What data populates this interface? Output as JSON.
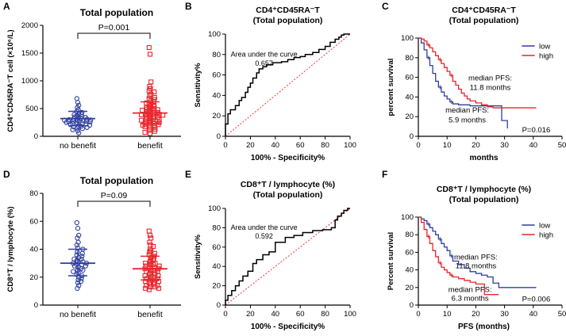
{
  "colors": {
    "blue": "#2f3f9e",
    "red": "#e8242b",
    "axis": "#000000",
    "ref": "#e8242b"
  },
  "chart_data": [
    {
      "panel": "A",
      "type": "scatter",
      "title": "Total population",
      "ylabel": "CD4⁺CD45RA⁻T cell (×10⁶/L)",
      "categories": [
        "no benefit",
        "benefit"
      ],
      "ylim": [
        0,
        2000
      ],
      "yticks": [
        0,
        500,
        1000,
        1500,
        2000
      ],
      "pvalue": "P=0.001",
      "groups": [
        {
          "name": "no benefit",
          "color_key": "blue",
          "marker": "circle",
          "mean": 320,
          "sd_low": 190,
          "sd_high": 450,
          "values": [
            680,
            610,
            560,
            520,
            480,
            450,
            430,
            410,
            400,
            390,
            370,
            360,
            350,
            340,
            330,
            320,
            315,
            310,
            300,
            295,
            290,
            285,
            280,
            275,
            270,
            265,
            260,
            250,
            240,
            235,
            230,
            220,
            210,
            200,
            190,
            180,
            170,
            160,
            150,
            140,
            120,
            100,
            60
          ]
        },
        {
          "name": "benefit",
          "color_key": "red",
          "marker": "square",
          "mean": 420,
          "sd_low": 230,
          "sd_high": 620,
          "values": [
            1600,
            1480,
            980,
            900,
            860,
            820,
            800,
            760,
            730,
            700,
            680,
            660,
            640,
            620,
            600,
            580,
            560,
            550,
            540,
            520,
            510,
            500,
            490,
            480,
            470,
            460,
            450,
            440,
            430,
            420,
            410,
            400,
            395,
            390,
            380,
            370,
            360,
            350,
            340,
            330,
            320,
            310,
            300,
            290,
            280,
            270,
            260,
            250,
            240,
            230,
            220,
            210,
            200,
            190,
            180,
            170,
            150,
            130,
            110,
            90,
            70,
            50
          ]
        }
      ]
    },
    {
      "panel": "B",
      "type": "line",
      "title": "CD4⁺CD45RA⁻T",
      "subtitle": "(Total population)",
      "xlabel": "100% - Specificity%",
      "ylabel": "Sensitivity%",
      "xlim": [
        0,
        100
      ],
      "ylim": [
        0,
        100
      ],
      "ticks": [
        0,
        20,
        40,
        60,
        80,
        100
      ],
      "annotation": "Area under the curve",
      "auc": "0.657",
      "x": [
        0,
        0,
        2,
        2,
        4,
        4,
        8,
        8,
        11,
        11,
        13,
        13,
        16,
        16,
        18,
        18,
        20,
        20,
        22,
        22,
        25,
        25,
        27,
        27,
        30,
        30,
        33,
        33,
        38,
        38,
        45,
        45,
        50,
        50,
        55,
        55,
        60,
        60,
        64,
        64,
        70,
        70,
        75,
        75,
        80,
        80,
        84,
        84,
        88,
        88,
        91,
        91,
        93,
        93,
        95,
        95,
        100
      ],
      "y": [
        0,
        12,
        12,
        22,
        22,
        26,
        26,
        30,
        30,
        35,
        35,
        38,
        38,
        43,
        43,
        48,
        48,
        52,
        52,
        57,
        57,
        62,
        62,
        66,
        66,
        68,
        68,
        70,
        70,
        72,
        72,
        73,
        73,
        75,
        75,
        77,
        77,
        78,
        78,
        80,
        80,
        82,
        82,
        85,
        85,
        88,
        88,
        92,
        92,
        95,
        95,
        97,
        97,
        99,
        99,
        100,
        100
      ]
    },
    {
      "panel": "C",
      "type": "line",
      "title": "CD4⁺CD45RA⁻T",
      "subtitle": "(Total population)",
      "xlabel": "months",
      "ylabel": "percent survival",
      "xlim": [
        0,
        50
      ],
      "ylim": [
        0,
        100
      ],
      "xticks": [
        0,
        10,
        20,
        30,
        40,
        50
      ],
      "yticks": [
        0,
        20,
        40,
        60,
        80,
        100
      ],
      "legend": [
        {
          "label": "low",
          "color_key": "blue"
        },
        {
          "label": "high",
          "color_key": "red"
        }
      ],
      "medians": [
        {
          "line1": "median PFS:",
          "line2": "11.8 months"
        },
        {
          "line1": "median PFS:",
          "line2": "5.9 months"
        }
      ],
      "pvalue": "P=0.016",
      "series": [
        {
          "name": "low",
          "color_key": "blue",
          "x": [
            0,
            1,
            2,
            3,
            4,
            5,
            6,
            7,
            8,
            9,
            10,
            11,
            12,
            14,
            16,
            18,
            20,
            22,
            24,
            26,
            28,
            29,
            30,
            31
          ],
          "y": [
            100,
            95,
            88,
            80,
            72,
            64,
            56,
            50,
            45,
            41,
            38,
            35,
            33,
            32,
            32,
            31,
            31,
            31,
            31,
            31,
            31,
            16,
            16,
            8
          ]
        },
        {
          "name": "high",
          "color_key": "red",
          "x": [
            0,
            1,
            2,
            3,
            4,
            5,
            6,
            7,
            8,
            9,
            10,
            11,
            12,
            13,
            14,
            15,
            16,
            17,
            18,
            20,
            22,
            24,
            26,
            28,
            30,
            32,
            41
          ],
          "y": [
            100,
            99,
            97,
            93,
            90,
            86,
            82,
            78,
            74,
            70,
            66,
            62,
            56,
            52,
            48,
            44,
            41,
            38,
            36,
            34,
            32,
            30,
            29,
            29,
            29,
            29,
            29
          ]
        }
      ]
    },
    {
      "panel": "D",
      "type": "scatter",
      "title": "Total population",
      "ylabel": "CD8⁺T / lymphocyte (%)",
      "categories": [
        "no benefit",
        "benefit"
      ],
      "ylim": [
        0,
        80
      ],
      "yticks": [
        0,
        20,
        40,
        60,
        80
      ],
      "pvalue": "P=0.09",
      "groups": [
        {
          "name": "no benefit",
          "color_key": "blue",
          "marker": "circle",
          "mean": 30,
          "sd_low": 21,
          "sd_high": 40,
          "values": [
            59,
            55,
            50,
            48,
            45,
            43,
            41,
            40,
            38,
            37,
            36,
            35,
            34,
            33,
            33,
            32,
            31,
            31,
            30,
            30,
            29,
            29,
            28,
            28,
            27,
            26,
            25,
            25,
            24,
            23,
            22,
            21,
            20,
            19,
            18,
            17,
            16,
            14,
            12
          ]
        },
        {
          "name": "benefit",
          "color_key": "red",
          "marker": "square",
          "mean": 26,
          "sd_low": 18,
          "sd_high": 35,
          "values": [
            53,
            50,
            48,
            45,
            43,
            42,
            40,
            39,
            38,
            37,
            36,
            35,
            34,
            33,
            32,
            32,
            31,
            30,
            30,
            29,
            29,
            28,
            28,
            27,
            27,
            26,
            26,
            25,
            25,
            24,
            24,
            23,
            23,
            22,
            22,
            21,
            21,
            20,
            20,
            19,
            19,
            18,
            18,
            17,
            17,
            16,
            16,
            15,
            15,
            14,
            14,
            13,
            13,
            12,
            12,
            11
          ]
        }
      ]
    },
    {
      "panel": "E",
      "type": "line",
      "title": "CD8⁺T / lymphocyte (%)",
      "subtitle": "(Total population)",
      "xlabel": "100% - Specificity%",
      "ylabel": "Sensitivity%",
      "xlim": [
        0,
        100
      ],
      "ylim": [
        0,
        100
      ],
      "ticks": [
        0,
        20,
        40,
        60,
        80,
        100
      ],
      "annotation": "Area under the curve",
      "auc": "0.592",
      "x": [
        0,
        0,
        2,
        2,
        5,
        5,
        8,
        8,
        11,
        11,
        14,
        14,
        18,
        18,
        22,
        22,
        25,
        25,
        30,
        30,
        35,
        35,
        40,
        40,
        48,
        48,
        55,
        55,
        62,
        62,
        70,
        70,
        78,
        78,
        85,
        85,
        88,
        88,
        90,
        90,
        93,
        93,
        95,
        95,
        98,
        98,
        100
      ],
      "y": [
        0,
        5,
        5,
        10,
        10,
        15,
        15,
        20,
        20,
        25,
        25,
        30,
        30,
        35,
        35,
        43,
        43,
        47,
        47,
        52,
        52,
        55,
        55,
        65,
        65,
        70,
        70,
        72,
        72,
        75,
        75,
        77,
        77,
        78,
        78,
        80,
        80,
        88,
        88,
        92,
        92,
        95,
        95,
        98,
        98,
        100,
        100
      ]
    },
    {
      "panel": "F",
      "type": "line",
      "title": "CD8⁺T / lymphocyte (%)",
      "subtitle": "(Total population)",
      "xlabel": "PFS (months)",
      "ylabel": "Percent survival",
      "xlim": [
        0,
        50
      ],
      "ylim": [
        0,
        100
      ],
      "xticks": [
        0,
        10,
        20,
        30,
        40,
        50
      ],
      "yticks": [
        0,
        20,
        40,
        60,
        80,
        100
      ],
      "legend": [
        {
          "label": "low",
          "color_key": "blue"
        },
        {
          "label": "high",
          "color_key": "red"
        }
      ],
      "medians": [
        {
          "line1": "median PFS:",
          "line2": "11.8 months"
        },
        {
          "line1": "median PFS:",
          "line2": "6.3 months"
        }
      ],
      "pvalue": "P=0.006",
      "series": [
        {
          "name": "low",
          "color_key": "blue",
          "x": [
            0,
            1,
            2,
            3,
            4,
            5,
            6,
            7,
            8,
            9,
            10,
            11,
            12,
            14,
            16,
            18,
            20,
            22,
            24,
            26,
            28,
            30,
            41
          ],
          "y": [
            100,
            98,
            96,
            92,
            88,
            84,
            80,
            75,
            70,
            66,
            62,
            56,
            50,
            46,
            42,
            38,
            36,
            34,
            32,
            25,
            20,
            20,
            20
          ]
        },
        {
          "name": "high",
          "color_key": "red",
          "x": [
            0,
            1,
            2,
            3,
            4,
            5,
            6,
            7,
            8,
            9,
            10,
            11,
            12,
            14,
            16,
            18,
            20,
            22,
            23,
            26,
            28
          ],
          "y": [
            100,
            94,
            86,
            78,
            70,
            62,
            55,
            48,
            43,
            40,
            37,
            34,
            32,
            30,
            28,
            26,
            24,
            24,
            12,
            12,
            12
          ]
        }
      ]
    }
  ],
  "panels": [
    "A",
    "B",
    "C",
    "D",
    "E",
    "F"
  ]
}
